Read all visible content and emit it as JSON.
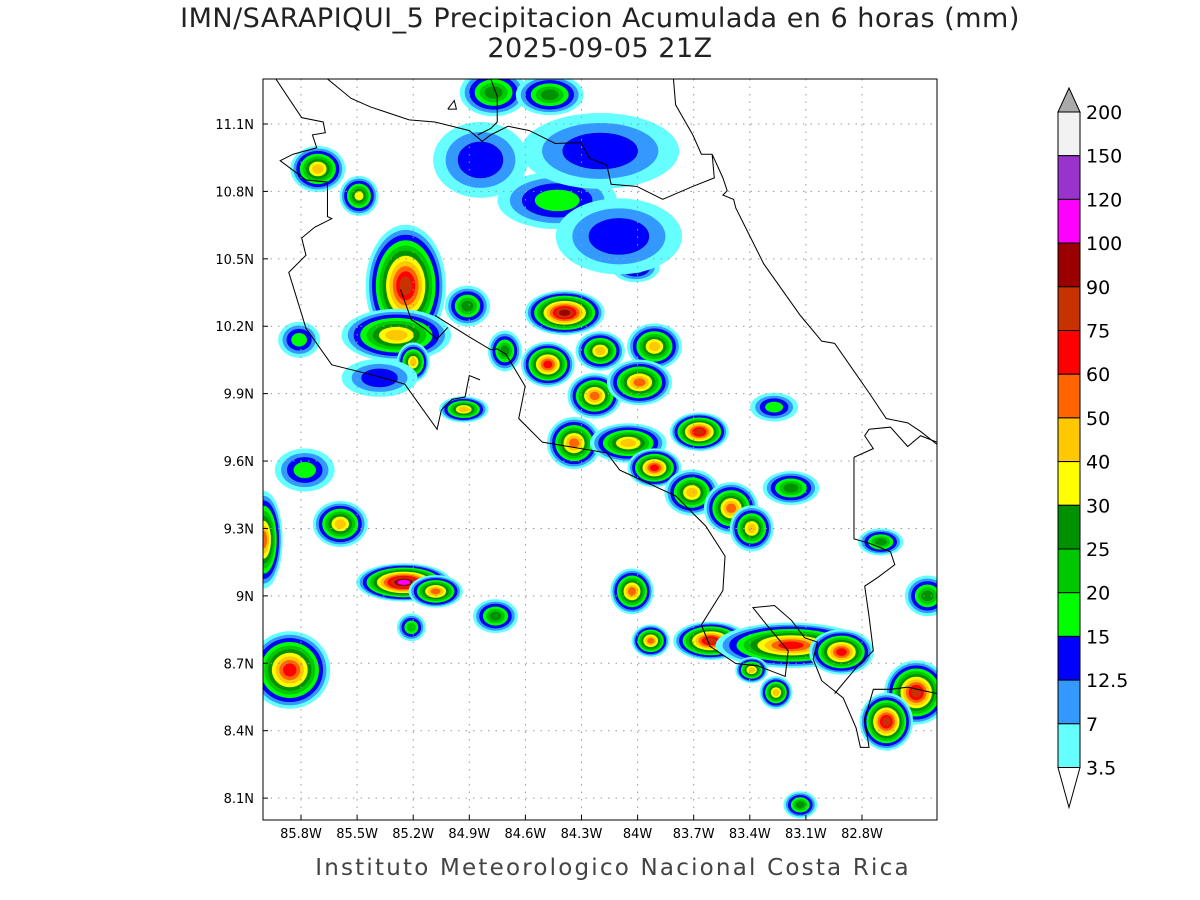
{
  "title": "IMN/SARAPIQUI_5 Precipitacion Acumulada en 6 horas (mm)",
  "subtitle": "2025-09-05 21Z",
  "footer": "Instituto Meteorologico Nacional Costa Rica",
  "chart_data": {
    "type": "heatmap",
    "projection": "lat-lon",
    "xlim": [
      -86.0,
      -82.4
    ],
    "ylim": [
      8.0,
      11.3
    ],
    "grid": true,
    "x_ticks": [
      {
        "value": -85.8,
        "label": "85.8W"
      },
      {
        "value": -85.5,
        "label": "85.5W"
      },
      {
        "value": -85.2,
        "label": "85.2W"
      },
      {
        "value": -84.9,
        "label": "84.9W"
      },
      {
        "value": -84.6,
        "label": "84.6W"
      },
      {
        "value": -84.3,
        "label": "84.3W"
      },
      {
        "value": -84.0,
        "label": "84W"
      },
      {
        "value": -83.7,
        "label": "83.7W"
      },
      {
        "value": -83.4,
        "label": "83.4W"
      },
      {
        "value": -83.1,
        "label": "83.1W"
      },
      {
        "value": -82.8,
        "label": "82.8W"
      }
    ],
    "y_ticks": [
      {
        "value": 11.1,
        "label": "11.1N"
      },
      {
        "value": 10.8,
        "label": "10.8N"
      },
      {
        "value": 10.5,
        "label": "10.5N"
      },
      {
        "value": 10.2,
        "label": "10.2N"
      },
      {
        "value": 9.9,
        "label": "9.9N"
      },
      {
        "value": 9.6,
        "label": "9.6N"
      },
      {
        "value": 9.3,
        "label": "9.3N"
      },
      {
        "value": 9.0,
        "label": "9N"
      },
      {
        "value": 8.7,
        "label": "8.7N"
      },
      {
        "value": 8.4,
        "label": "8.4N"
      },
      {
        "value": 8.1,
        "label": "8.1N"
      }
    ],
    "colorbar": {
      "levels": [
        "3.5",
        "7",
        "12.5",
        "15",
        "20",
        "25",
        "30",
        "40",
        "50",
        "60",
        "75",
        "90",
        "100",
        "120",
        "150",
        "200"
      ],
      "colors": [
        "#66ffff",
        "#3399ff",
        "#0000ff",
        "#00ff00",
        "#00c800",
        "#009100",
        "#ffff00",
        "#ffc800",
        "#ff6400",
        "#ff0000",
        "#c83200",
        "#9b0000",
        "#ff00ff",
        "#9933cc",
        "#f2f2f2",
        "#aaaaaa"
      ],
      "orientation": "vertical",
      "extend": "both"
    },
    "cells": [
      {
        "lon": -85.71,
        "lat": 10.9,
        "peak": 40,
        "rx": 0.1,
        "ry": 0.07
      },
      {
        "lon": -85.24,
        "lat": 10.38,
        "peak": 75,
        "rx": 0.15,
        "ry": 0.19
      },
      {
        "lon": -85.29,
        "lat": 10.16,
        "peak": 40,
        "rx": 0.2,
        "ry": 0.08
      },
      {
        "lon": -84.39,
        "lat": 10.26,
        "peak": 90,
        "rx": 0.15,
        "ry": 0.07
      },
      {
        "lon": -84.48,
        "lat": 10.03,
        "peak": 60,
        "rx": 0.1,
        "ry": 0.07
      },
      {
        "lon": -84.2,
        "lat": 10.09,
        "peak": 40,
        "rx": 0.09,
        "ry": 0.06
      },
      {
        "lon": -83.91,
        "lat": 10.11,
        "peak": 40,
        "rx": 0.1,
        "ry": 0.07
      },
      {
        "lon": -84.23,
        "lat": 9.89,
        "peak": 50,
        "rx": 0.1,
        "ry": 0.07
      },
      {
        "lon": -83.99,
        "lat": 9.95,
        "peak": 50,
        "rx": 0.12,
        "ry": 0.07
      },
      {
        "lon": -83.67,
        "lat": 9.73,
        "peak": 75,
        "rx": 0.11,
        "ry": 0.06
      },
      {
        "lon": -84.34,
        "lat": 9.68,
        "peak": 50,
        "rx": 0.1,
        "ry": 0.08
      },
      {
        "lon": -84.05,
        "lat": 9.68,
        "peak": 40,
        "rx": 0.14,
        "ry": 0.06
      },
      {
        "lon": -83.91,
        "lat": 9.57,
        "peak": 60,
        "rx": 0.1,
        "ry": 0.06
      },
      {
        "lon": -83.71,
        "lat": 9.46,
        "peak": 40,
        "rx": 0.1,
        "ry": 0.07
      },
      {
        "lon": -83.5,
        "lat": 9.39,
        "peak": 50,
        "rx": 0.1,
        "ry": 0.08
      },
      {
        "lon": -83.39,
        "lat": 9.3,
        "peak": 40,
        "rx": 0.08,
        "ry": 0.07
      },
      {
        "lon": -83.18,
        "lat": 9.48,
        "peak": 25,
        "rx": 0.1,
        "ry": 0.05
      },
      {
        "lon": -82.7,
        "lat": 9.24,
        "peak": 25,
        "rx": 0.08,
        "ry": 0.04
      },
      {
        "lon": -85.59,
        "lat": 9.32,
        "peak": 40,
        "rx": 0.1,
        "ry": 0.07
      },
      {
        "lon": -86.0,
        "lat": 9.25,
        "peak": 50,
        "rx": 0.07,
        "ry": 0.15
      },
      {
        "lon": -85.25,
        "lat": 9.06,
        "peak": 100,
        "rx": 0.18,
        "ry": 0.06
      },
      {
        "lon": -85.08,
        "lat": 9.02,
        "peak": 50,
        "rx": 0.1,
        "ry": 0.05
      },
      {
        "lon": -84.03,
        "lat": 9.02,
        "peak": 50,
        "rx": 0.08,
        "ry": 0.07
      },
      {
        "lon": -83.93,
        "lat": 8.8,
        "peak": 50,
        "rx": 0.07,
        "ry": 0.05
      },
      {
        "lon": -83.61,
        "lat": 8.8,
        "peak": 75,
        "rx": 0.14,
        "ry": 0.06
      },
      {
        "lon": -83.18,
        "lat": 8.78,
        "peak": 60,
        "rx": 0.28,
        "ry": 0.07
      },
      {
        "lon": -82.91,
        "lat": 8.75,
        "peak": 60,
        "rx": 0.12,
        "ry": 0.07
      },
      {
        "lon": -82.51,
        "lat": 8.57,
        "peak": 75,
        "rx": 0.12,
        "ry": 0.1
      },
      {
        "lon": -82.67,
        "lat": 8.44,
        "peak": 75,
        "rx": 0.1,
        "ry": 0.09
      },
      {
        "lon": -83.26,
        "lat": 8.57,
        "peak": 40,
        "rx": 0.06,
        "ry": 0.05
      },
      {
        "lon": -85.86,
        "lat": 8.67,
        "peak": 60,
        "rx": 0.15,
        "ry": 0.12
      },
      {
        "lon": -84.77,
        "lat": 11.24,
        "peak": 25,
        "rx": 0.12,
        "ry": 0.07
      },
      {
        "lon": -84.47,
        "lat": 11.23,
        "peak": 25,
        "rx": 0.12,
        "ry": 0.06
      },
      {
        "lon": -84.93,
        "lat": 9.83,
        "peak": 40,
        "rx": 0.09,
        "ry": 0.04
      },
      {
        "lon": -85.2,
        "lat": 10.04,
        "peak": 40,
        "rx": 0.06,
        "ry": 0.06
      },
      {
        "lon": -82.45,
        "lat": 9.0,
        "peak": 25,
        "rx": 0.08,
        "ry": 0.06
      },
      {
        "lon": -83.13,
        "lat": 8.07,
        "peak": 25,
        "rx": 0.06,
        "ry": 0.04
      },
      {
        "lon": -84.91,
        "lat": 10.29,
        "peak": 25,
        "rx": 0.08,
        "ry": 0.06
      },
      {
        "lon": -84.71,
        "lat": 10.09,
        "peak": 25,
        "rx": 0.06,
        "ry": 0.06
      },
      {
        "lon": -84.76,
        "lat": 8.91,
        "peak": 25,
        "rx": 0.08,
        "ry": 0.05
      },
      {
        "lon": -85.21,
        "lat": 8.86,
        "peak": 20,
        "rx": 0.05,
        "ry": 0.04
      },
      {
        "lon": -84.84,
        "lat": 10.94,
        "peak": 12.5,
        "rx": 0.15,
        "ry": 0.1
      },
      {
        "lon": -84.43,
        "lat": 10.76,
        "peak": 15,
        "rx": 0.2,
        "ry": 0.08
      },
      {
        "lon": -84.01,
        "lat": 10.46,
        "peak": 15,
        "rx": 0.08,
        "ry": 0.04
      },
      {
        "lon": -83.27,
        "lat": 9.84,
        "peak": 15,
        "rx": 0.08,
        "ry": 0.04
      },
      {
        "lon": -85.81,
        "lat": 10.14,
        "peak": 15,
        "rx": 0.07,
        "ry": 0.05
      },
      {
        "lon": -85.38,
        "lat": 9.97,
        "peak": 12.5,
        "rx": 0.12,
        "ry": 0.05
      },
      {
        "lon": -84.2,
        "lat": 10.98,
        "peak": 12.5,
        "rx": 0.25,
        "ry": 0.1
      },
      {
        "lon": -84.1,
        "lat": 10.6,
        "peak": 12.5,
        "rx": 0.2,
        "ry": 0.1
      },
      {
        "lon": -85.49,
        "lat": 10.78,
        "peak": 30,
        "rx": 0.07,
        "ry": 0.06
      },
      {
        "lon": -83.39,
        "lat": 8.67,
        "peak": 40,
        "rx": 0.06,
        "ry": 0.04
      },
      {
        "lon": -85.78,
        "lat": 9.56,
        "peak": 15,
        "rx": 0.1,
        "ry": 0.06
      }
    ]
  }
}
